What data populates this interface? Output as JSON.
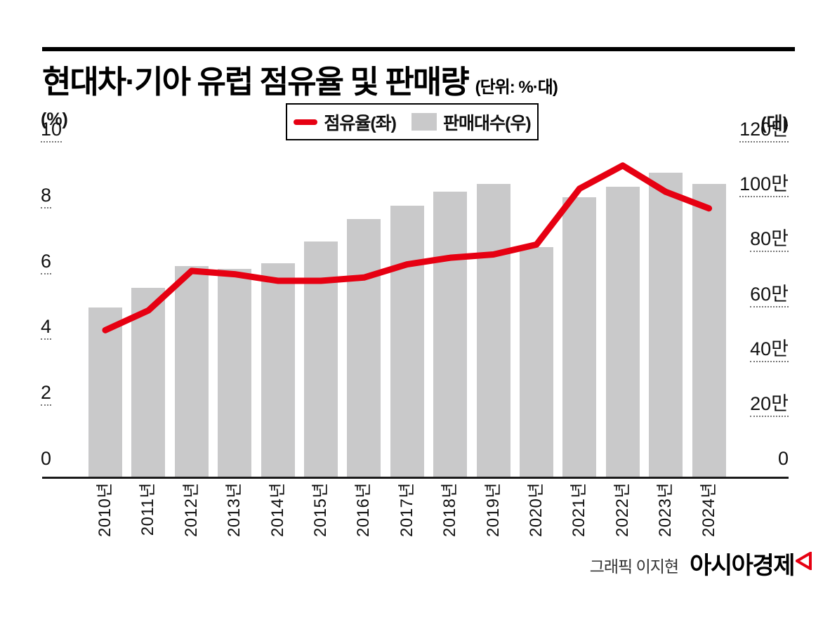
{
  "title": {
    "text": "현대차·기아 유럽 점유율 및 판매량",
    "unit": "(단위: %·대)"
  },
  "legend": {
    "items": [
      {
        "label": "점유율(좌)",
        "marker": "red-line-swatch"
      },
      {
        "label": "판매대수(우)",
        "marker": "gray-bar-swatch"
      }
    ]
  },
  "axes": {
    "left": {
      "header": "(%)"
    },
    "right": {
      "header": "(대)"
    }
  },
  "footer": {
    "credit": "그래픽 이지현",
    "brand": "아시아경제"
  },
  "colors": {
    "line_red": "#e60012",
    "bar_gray": "#c9c9ca",
    "axis_black": "#1a1a1a"
  },
  "chart_data": {
    "type": "line+bar combo",
    "title": "현대차·기아 유럽 점유율 및 판매량",
    "unit_note": "(단위: %·대)",
    "categories": [
      "2010년",
      "2011년",
      "2012년",
      "2013년",
      "2014년",
      "2015년",
      "2016년",
      "2017년",
      "2018년",
      "2019년",
      "2020년",
      "2021년",
      "2022년",
      "2023년",
      "2024년"
    ],
    "series": [
      {
        "name": "점유율(좌)",
        "type": "line",
        "axis": "left",
        "unit": "%",
        "color": "#e60012",
        "values": [
          4.3,
          4.9,
          6.1,
          6.0,
          5.8,
          5.8,
          5.9,
          6.3,
          6.5,
          6.6,
          6.9,
          8.6,
          9.3,
          8.5,
          8.0
        ]
      },
      {
        "name": "판매대수(우)",
        "type": "bar",
        "axis": "right",
        "unit": "만대",
        "color": "#c9c9ca",
        "values": [
          60,
          67,
          75,
          74,
          76,
          84,
          92,
          97,
          102,
          105,
          82,
          100,
          104,
          109,
          105
        ]
      }
    ],
    "left_axis": {
      "label": "(%)",
      "range": [
        0,
        10
      ],
      "tick_step": 2,
      "ticks": [
        "10",
        "8",
        "6",
        "4",
        "2",
        "0"
      ],
      "tick_values": [
        10,
        8,
        6,
        4,
        2,
        0
      ]
    },
    "right_axis": {
      "label": "(대)",
      "range": [
        0,
        1200000
      ],
      "tick_step": 200000,
      "ticks": [
        "120만",
        "100만",
        "80만",
        "60만",
        "40만",
        "20만",
        "0"
      ],
      "tick_values": [
        120,
        100,
        80,
        60,
        40,
        20,
        0
      ]
    },
    "grid": false,
    "legend_position": "top-center"
  }
}
